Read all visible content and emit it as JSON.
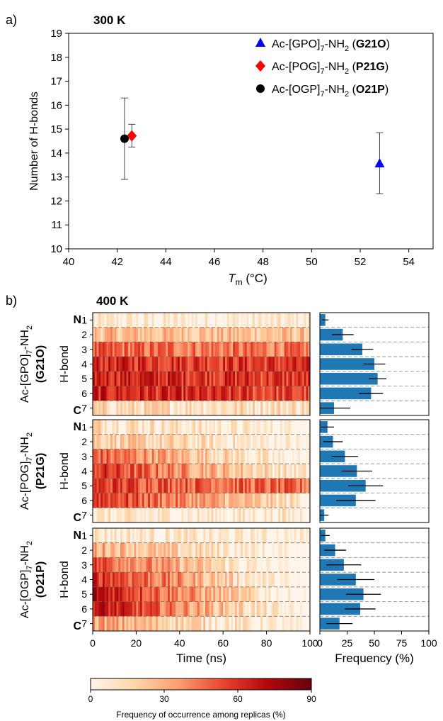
{
  "panel_a": {
    "letter": "a)",
    "temp": "300 K"
  },
  "panel_b": {
    "letter": "b)",
    "temp": "400 K"
  },
  "chart_data": [
    {
      "type": "scatter",
      "title": "300 K",
      "xlabel_main": "T",
      "xlabel_sub": "m",
      "xlabel_unit": " (°C)",
      "ylabel": "Number of H-bonds",
      "xlim": [
        40,
        55
      ],
      "ylim": [
        10,
        19
      ],
      "xticks": [
        40,
        42,
        44,
        46,
        48,
        50,
        52,
        54
      ],
      "yticks": [
        10,
        11,
        12,
        13,
        14,
        15,
        16,
        17,
        18,
        19
      ],
      "grid": false,
      "legend_position": "top-right",
      "series": [
        {
          "name_pre": "Ac-[GPO]",
          "name_sub": "7",
          "name_mid": "-NH",
          "name_sub2": "2",
          "name_code": "G21O",
          "marker": "triangle",
          "color": "#0000ff",
          "x": 52.8,
          "y": 13.55,
          "err_low": 12.3,
          "err_high": 14.85
        },
        {
          "name_pre": "Ac-[POG]",
          "name_sub": "7",
          "name_mid": "-NH",
          "name_sub2": "2",
          "name_code": "P21G",
          "marker": "diamond",
          "color": "#ff0000",
          "x": 42.6,
          "y": 14.72,
          "err_low": 14.25,
          "err_high": 15.2
        },
        {
          "name_pre": "Ac-[OGP]",
          "name_sub": "7",
          "name_mid": "-NH",
          "name_sub2": "2",
          "name_code": "O21P",
          "marker": "circle",
          "color": "#000000",
          "x": 42.3,
          "y": 14.6,
          "err_low": 12.9,
          "err_high": 16.3
        }
      ]
    },
    {
      "type": "heatmap",
      "title": "400 K",
      "xlabel": "Time (ns)",
      "ylabel": "H-bond",
      "xlim": [
        0,
        100
      ],
      "xticks": [
        0,
        20,
        40,
        60,
        80,
        100
      ],
      "row_labels": [
        "1",
        "2",
        "3",
        "4",
        "5",
        "6",
        "7"
      ],
      "end_labels": [
        "N",
        "C"
      ],
      "colorbar": {
        "label": "Frequency of occurrence among replicas (%)",
        "range": [
          0,
          90
        ],
        "ticks": [
          0,
          30,
          60,
          90
        ]
      },
      "colormap": [
        "#fff5eb",
        "#fdd6a8",
        "#fc9d71",
        "#e8452d",
        "#b3080d",
        "#67000d"
      ],
      "panels": [
        {
          "name_pre": "Ac-[GPO]",
          "name_sub": "7",
          "name_mid": "-NH",
          "name_sub2": "2",
          "name_code": "(G21O)",
          "row_mean_pct": [
            4,
            25,
            45,
            60,
            62,
            60,
            14
          ],
          "row_decay_pct_per_100ns": [
            0,
            2,
            4,
            4,
            6,
            8,
            0
          ]
        },
        {
          "name_pre": "Ac-[POG]",
          "name_sub": "7",
          "name_mid": "-NH",
          "name_sub2": "2",
          "name_code": "(P21G)",
          "row_mean_pct": [
            10,
            14,
            30,
            40,
            52,
            42,
            6
          ],
          "row_decay_pct_per_100ns": [
            12,
            16,
            40,
            40,
            10,
            40,
            0
          ]
        },
        {
          "name_pre": "Ac-[OGP]",
          "name_sub": "7",
          "name_mid": "-NH",
          "name_sub2": "2",
          "name_code": "(O21P)",
          "row_mean_pct": [
            6,
            18,
            30,
            38,
            44,
            42,
            20
          ],
          "row_decay_pct_per_100ns": [
            6,
            28,
            50,
            54,
            60,
            56,
            28
          ]
        }
      ]
    },
    {
      "type": "bar",
      "orientation": "horizontal",
      "xlabel": "Frequency (%)",
      "xlim": [
        0,
        100
      ],
      "xticks": [
        0,
        25,
        50,
        75,
        100
      ],
      "bar_color": "#1f77b4",
      "categories": [
        "1",
        "2",
        "3",
        "4",
        "5",
        "6",
        "7"
      ],
      "panels": [
        {
          "name_code": "G21O",
          "values": [
            5,
            21,
            39,
            50,
            53,
            47,
            13
          ],
          "errors": [
            3,
            10,
            10,
            10,
            8,
            11,
            15
          ]
        },
        {
          "name_code": "P21G",
          "values": [
            7,
            12,
            23,
            34,
            42,
            33,
            4
          ],
          "errors": [
            6,
            9,
            12,
            14,
            16,
            18,
            4
          ]
        },
        {
          "name_code": "O21P",
          "values": [
            5,
            14,
            22,
            33,
            40,
            37,
            18
          ],
          "errors": [
            4,
            10,
            16,
            17,
            16,
            14,
            12
          ]
        }
      ]
    }
  ]
}
